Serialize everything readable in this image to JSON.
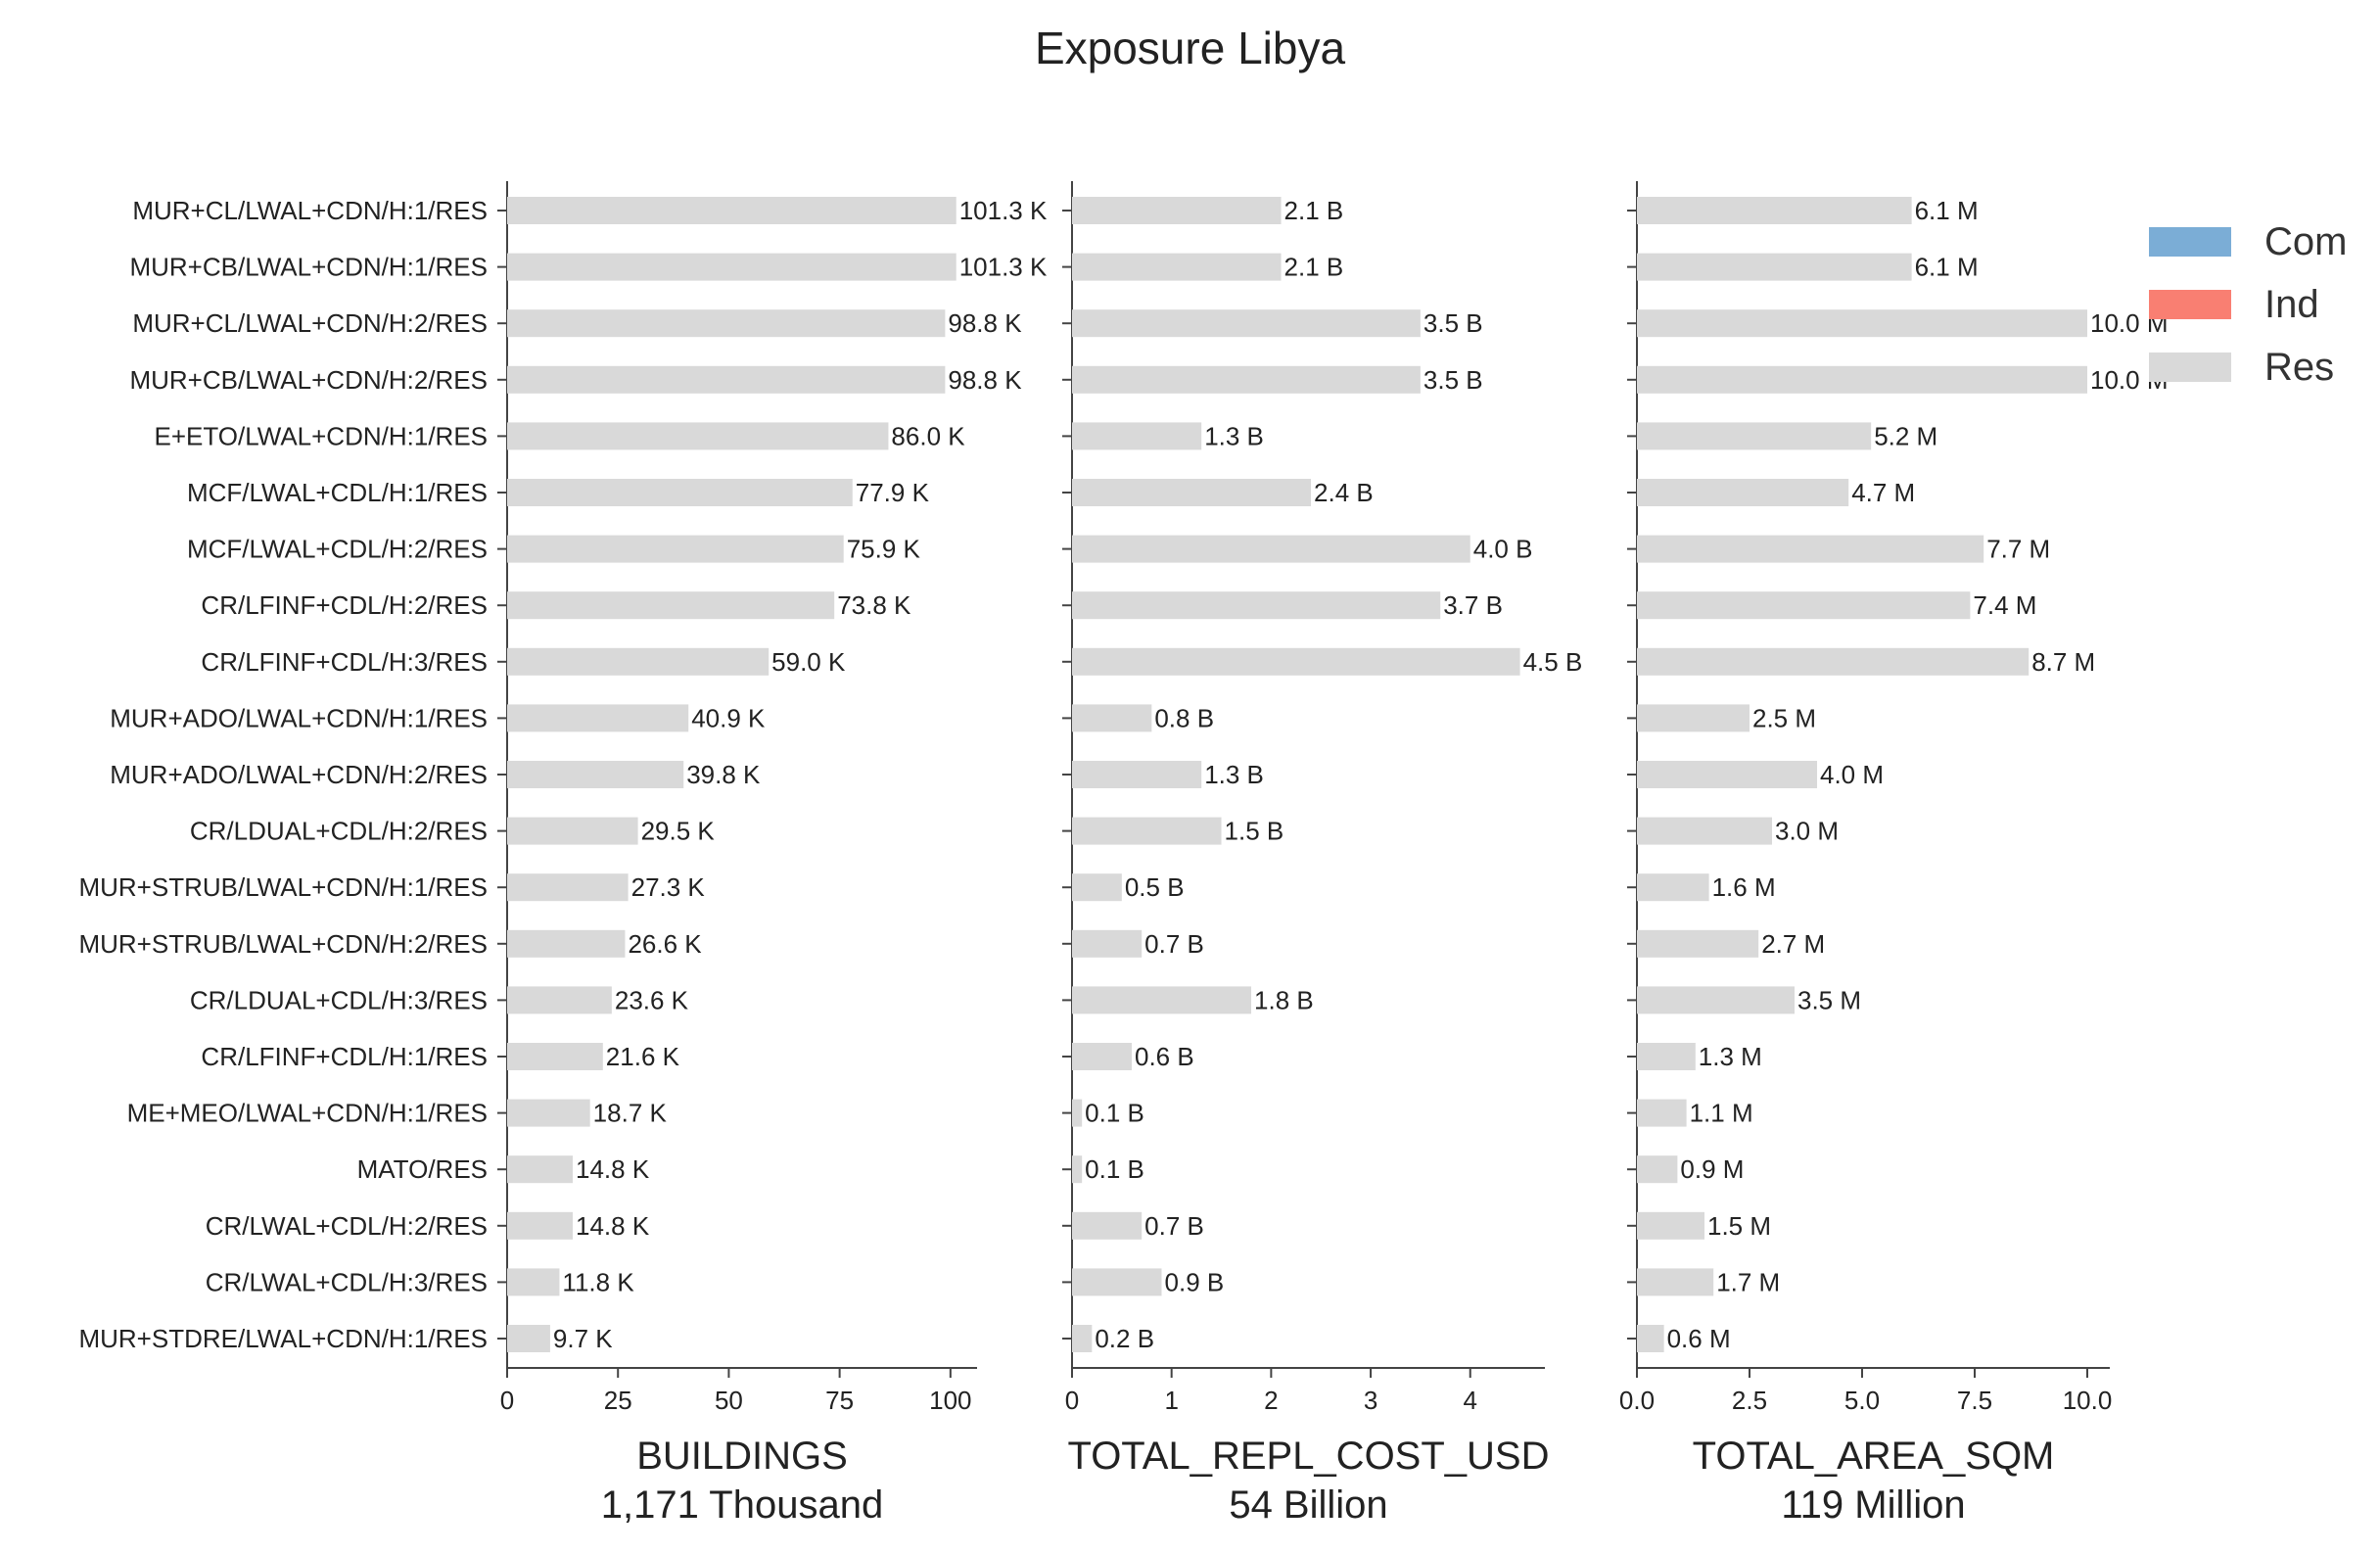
{
  "title": "Exposure Libya",
  "legend": [
    {
      "label": "Com",
      "color": "#7BADD6"
    },
    {
      "label": "Ind",
      "color": "#F97F72"
    },
    {
      "label": "Res",
      "color": "#D9D9D9"
    }
  ],
  "chart_data": [
    {
      "type": "bar",
      "orientation": "horizontal",
      "xlabel": "BUILDINGS",
      "subtitle": "1,171 Thousand",
      "xlim": [
        0,
        106
      ],
      "xticks": [
        0,
        25,
        50,
        75,
        100
      ],
      "xtick_labels": [
        "0",
        "25",
        "50",
        "75",
        "100"
      ],
      "series": [
        {
          "name": "Res",
          "color": "#D9D9D9"
        }
      ],
      "categories": [
        "MUR+CL/LWAL+CDN/H:1/RES",
        "MUR+CB/LWAL+CDN/H:1/RES",
        "MUR+CL/LWAL+CDN/H:2/RES",
        "MUR+CB/LWAL+CDN/H:2/RES",
        "E+ETO/LWAL+CDN/H:1/RES",
        "MCF/LWAL+CDL/H:1/RES",
        "MCF/LWAL+CDL/H:2/RES",
        "CR/LFINF+CDL/H:2/RES",
        "CR/LFINF+CDL/H:3/RES",
        "MUR+ADO/LWAL+CDN/H:1/RES",
        "MUR+ADO/LWAL+CDN/H:2/RES",
        "CR/LDUAL+CDL/H:2/RES",
        "MUR+STRUB/LWAL+CDN/H:1/RES",
        "MUR+STRUB/LWAL+CDN/H:2/RES",
        "CR/LDUAL+CDL/H:3/RES",
        "CR/LFINF+CDL/H:1/RES",
        "ME+MEO/LWAL+CDN/H:1/RES",
        "MATO/RES",
        "CR/LWAL+CDL/H:2/RES",
        "CR/LWAL+CDL/H:3/RES",
        "MUR+STDRE/LWAL+CDN/H:1/RES"
      ],
      "values": [
        101.3,
        101.3,
        98.8,
        98.8,
        86.0,
        77.9,
        75.9,
        73.8,
        59.0,
        40.9,
        39.8,
        29.5,
        27.3,
        26.6,
        23.6,
        21.6,
        18.7,
        14.8,
        14.8,
        11.8,
        9.7
      ],
      "labels": [
        "101.3 K",
        "101.3 K",
        "98.8 K",
        "98.8 K",
        "86.0 K",
        "77.9 K",
        "75.9 K",
        "73.8 K",
        "59.0 K",
        "40.9 K",
        "39.8 K",
        "29.5 K",
        "27.3 K",
        "26.6 K",
        "23.6 K",
        "21.6 K",
        "18.7 K",
        "14.8 K",
        "14.8 K",
        "11.8 K",
        "9.7 K"
      ]
    },
    {
      "type": "bar",
      "orientation": "horizontal",
      "xlabel": "TOTAL_REPL_COST_USD",
      "subtitle": "54 Billion",
      "xlim": [
        0,
        4.75
      ],
      "xticks": [
        0,
        1,
        2,
        3,
        4
      ],
      "xtick_labels": [
        "0",
        "1",
        "2",
        "3",
        "4"
      ],
      "series": [
        {
          "name": "Res",
          "color": "#D9D9D9"
        }
      ],
      "values": [
        2.1,
        2.1,
        3.5,
        3.5,
        1.3,
        2.4,
        4.0,
        3.7,
        4.5,
        0.8,
        1.3,
        1.5,
        0.5,
        0.7,
        1.8,
        0.6,
        0.1,
        0.1,
        0.7,
        0.9,
        0.2
      ],
      "labels": [
        "2.1 B",
        "2.1 B",
        "3.5 B",
        "3.5 B",
        "1.3 B",
        "2.4 B",
        "4.0 B",
        "3.7 B",
        "4.5 B",
        "0.8 B",
        "1.3 B",
        "1.5 B",
        "0.5 B",
        "0.7 B",
        "1.8 B",
        "0.6 B",
        "0.1 B",
        "0.1 B",
        "0.7 B",
        "0.9 B",
        "0.2 B"
      ]
    },
    {
      "type": "bar",
      "orientation": "horizontal",
      "xlabel": "TOTAL_AREA_SQM",
      "subtitle": "119 Million",
      "xlim": [
        0,
        10.5
      ],
      "xticks": [
        0,
        2.5,
        5,
        7.5,
        10
      ],
      "xtick_labels": [
        "0.0",
        "2.5",
        "5.0",
        "7.5",
        "10.0"
      ],
      "series": [
        {
          "name": "Res",
          "color": "#D9D9D9"
        }
      ],
      "values": [
        6.1,
        6.1,
        10.0,
        10.0,
        5.2,
        4.7,
        7.7,
        7.4,
        8.7,
        2.5,
        4.0,
        3.0,
        1.6,
        2.7,
        3.5,
        1.3,
        1.1,
        0.9,
        1.5,
        1.7,
        0.6
      ],
      "labels": [
        "6.1 M",
        "6.1 M",
        "10.0 M",
        "10.0 M",
        "5.2 M",
        "4.7 M",
        "7.7 M",
        "7.4 M",
        "8.7 M",
        "2.5 M",
        "4.0 M",
        "3.0 M",
        "1.6 M",
        "2.7 M",
        "3.5 M",
        "1.3 M",
        "1.1 M",
        "0.9 M",
        "1.5 M",
        "1.7 M",
        "0.6 M"
      ]
    }
  ]
}
